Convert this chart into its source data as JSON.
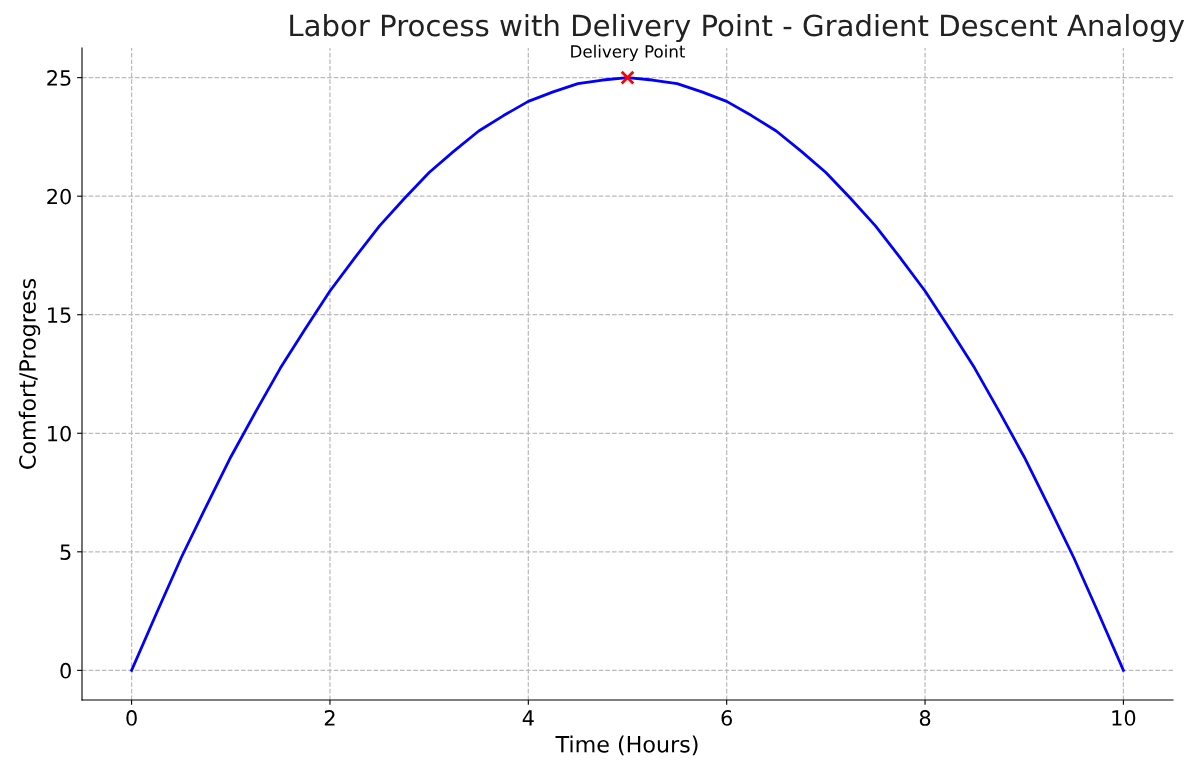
{
  "chart_data": {
    "type": "line",
    "title": "Labor Process with Delivery Point - Gradient Descent Analogy",
    "xlabel": "Time (Hours)",
    "ylabel": "Comfort/Progress",
    "x": [
      0,
      0.25,
      0.5,
      0.75,
      1,
      1.25,
      1.5,
      1.75,
      2,
      2.25,
      2.5,
      2.75,
      3,
      3.25,
      3.5,
      3.75,
      4,
      4.25,
      4.5,
      4.75,
      5,
      5.25,
      5.5,
      5.75,
      6,
      6.25,
      6.5,
      6.75,
      7,
      7.25,
      7.5,
      7.75,
      8,
      8.25,
      8.5,
      8.75,
      9,
      9.25,
      9.5,
      9.75,
      10
    ],
    "series": [
      {
        "color": "#0000ff",
        "marker": "none",
        "line_style": "solid",
        "values": [
          0,
          2.4,
          4.75,
          6.9,
          9,
          10.9,
          12.75,
          14.4,
          16,
          17.4,
          18.75,
          19.9,
          21,
          21.9,
          22.75,
          23.4,
          24,
          24.4,
          24.75,
          24.9,
          25,
          24.9,
          24.75,
          24.4,
          24,
          23.4,
          22.75,
          21.9,
          21,
          19.9,
          18.75,
          17.4,
          16,
          14.4,
          12.75,
          10.9,
          9,
          6.9,
          4.75,
          2.4,
          0
        ]
      },
      {
        "type": "scatter",
        "color": "#ff0000",
        "marker": "cross",
        "x": [
          5
        ],
        "values": [
          25
        ]
      }
    ],
    "annotations": [
      {
        "text": "Delivery Point",
        "x": 5,
        "y": 25
      }
    ],
    "xlim": [
      -0.5,
      10.5
    ],
    "ylim": [
      -1.25,
      26.25
    ],
    "xticks": [
      0,
      2,
      4,
      6,
      8,
      10
    ],
    "yticks": [
      0,
      5,
      10,
      15,
      20,
      25
    ],
    "grid": true,
    "legend": false
  }
}
